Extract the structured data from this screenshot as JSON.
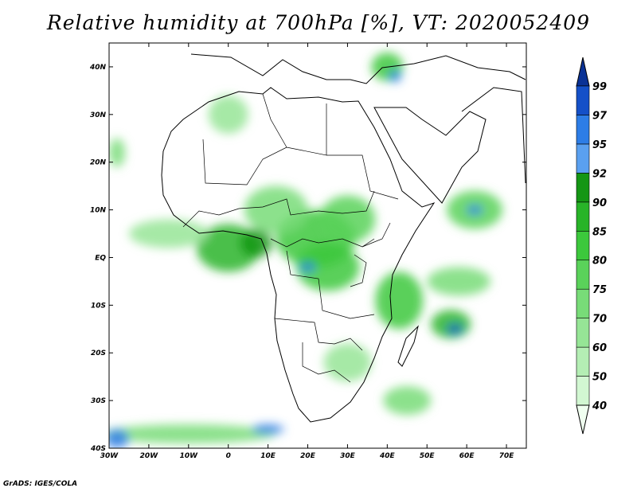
{
  "title": "Relative humidity at 700hPa [%], VT: 2020052409",
  "footer": "GrADS: IGES/COLA",
  "map": {
    "lon_range": [
      -30,
      75
    ],
    "lat_range": [
      -40,
      45
    ],
    "lon_ticks": [
      {
        "value": -30,
        "label": "30W"
      },
      {
        "value": -20,
        "label": "20W"
      },
      {
        "value": -10,
        "label": "10W"
      },
      {
        "value": 0,
        "label": "0"
      },
      {
        "value": 10,
        "label": "10E"
      },
      {
        "value": 20,
        "label": "20E"
      },
      {
        "value": 30,
        "label": "30E"
      },
      {
        "value": 40,
        "label": "40E"
      },
      {
        "value": 50,
        "label": "50E"
      },
      {
        "value": 60,
        "label": "60E"
      },
      {
        "value": 70,
        "label": "70E"
      }
    ],
    "lat_ticks": [
      {
        "value": 40,
        "label": "40N"
      },
      {
        "value": 30,
        "label": "30N"
      },
      {
        "value": 20,
        "label": "20N"
      },
      {
        "value": 10,
        "label": "10N"
      },
      {
        "value": 0,
        "label": "EQ"
      },
      {
        "value": -10,
        "label": "10S"
      },
      {
        "value": -20,
        "label": "20S"
      },
      {
        "value": -30,
        "label": "30S"
      },
      {
        "value": -40,
        "label": "40S"
      }
    ]
  },
  "colorbar": {
    "levels": [
      "40",
      "50",
      "60",
      "70",
      "75",
      "80",
      "85",
      "90",
      "92",
      "95",
      "97",
      "99"
    ],
    "colors": [
      "#f0fff0",
      "#d2f7d2",
      "#b4eeb4",
      "#96e596",
      "#78dc78",
      "#5ad25a",
      "#3cc83c",
      "#28b428",
      "#149614",
      "#5aa0f0",
      "#2d7de6",
      "#1450c8",
      "#0a3296"
    ]
  },
  "humid_regions": [
    {
      "lon": 0,
      "lat": 2,
      "rx": 8,
      "ry": 5,
      "level": 7
    },
    {
      "lon": 7,
      "lat": 3,
      "rx": 4,
      "ry": 3,
      "level": 8
    },
    {
      "lon": 22,
      "lat": 4,
      "rx": 10,
      "ry": 6,
      "level": 6
    },
    {
      "lon": 25,
      "lat": -2,
      "rx": 8,
      "ry": 5,
      "level": 6
    },
    {
      "lon": 30,
      "lat": 8,
      "rx": 7,
      "ry": 5,
      "level": 5
    },
    {
      "lon": 12,
      "lat": 10,
      "rx": 8,
      "ry": 5,
      "level": 4
    },
    {
      "lon": 43,
      "lat": -9,
      "rx": 6,
      "ry": 6,
      "level": 6
    },
    {
      "lon": 56,
      "lat": -14,
      "rx": 5,
      "ry": 3,
      "level": 7
    },
    {
      "lon": 62,
      "lat": 10,
      "rx": 7,
      "ry": 4,
      "level": 5
    },
    {
      "lon": 58,
      "lat": -5,
      "rx": 8,
      "ry": 3,
      "level": 4
    },
    {
      "lon": 0,
      "lat": 30,
      "rx": 5,
      "ry": 4,
      "level": 3
    },
    {
      "lon": 40,
      "lat": 40,
      "rx": 4,
      "ry": 3,
      "level": 6
    },
    {
      "lon": -28,
      "lat": 22,
      "rx": 2,
      "ry": 3,
      "level": 4
    },
    {
      "lon": -15,
      "lat": 5,
      "rx": 10,
      "ry": 3,
      "level": 3
    },
    {
      "lon": 30,
      "lat": -22,
      "rx": 6,
      "ry": 4,
      "level": 3
    },
    {
      "lon": 45,
      "lat": -30,
      "rx": 6,
      "ry": 3,
      "level": 4
    },
    {
      "lon": -10,
      "lat": -37,
      "rx": 22,
      "ry": 2,
      "level": 4
    },
    {
      "lon": -28,
      "lat": -38,
      "rx": 3,
      "ry": 2,
      "level": 10
    },
    {
      "lon": 10,
      "lat": -36,
      "rx": 4,
      "ry": 1,
      "level": 10
    },
    {
      "lon": 57,
      "lat": -15,
      "rx": 2,
      "ry": 1,
      "level": 11
    },
    {
      "lon": 62,
      "lat": 10,
      "rx": 2,
      "ry": 1,
      "level": 10
    },
    {
      "lon": 20,
      "lat": -2,
      "rx": 2,
      "ry": 1,
      "level": 10
    },
    {
      "lon": 42,
      "lat": 38,
      "rx": 1.5,
      "ry": 1.2,
      "level": 10
    }
  ]
}
